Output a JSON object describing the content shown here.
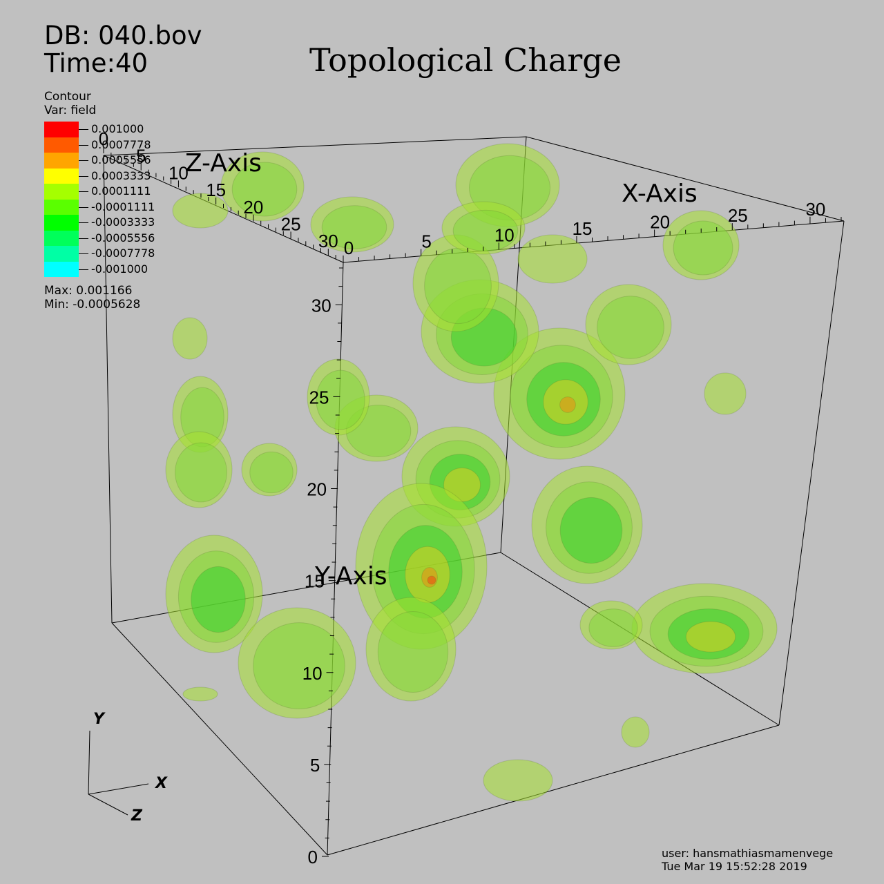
{
  "header": {
    "db": "DB: 040.bov",
    "time": "Time:40"
  },
  "title": "Topological Charge",
  "legend": {
    "heading": "Contour",
    "var": "Var: field",
    "entries": [
      {
        "label": "0.001000",
        "color": "#ff0000"
      },
      {
        "label": "0.0007778",
        "color": "#ff5a00"
      },
      {
        "label": "0.0005556",
        "color": "#ffa500"
      },
      {
        "label": "0.0003333",
        "color": "#ffff00"
      },
      {
        "label": "0.0001111",
        "color": "#a5ff00"
      },
      {
        "label": "-0.0001111",
        "color": "#5aff00"
      },
      {
        "label": "-0.0003333",
        "color": "#00ff00"
      },
      {
        "label": "-0.0005556",
        "color": "#00ff5a"
      },
      {
        "label": "-0.0007778",
        "color": "#00ffa5"
      },
      {
        "label": "-0.001000",
        "color": "#00ffff"
      }
    ],
    "max": "Max:  0.001166",
    "min": "Min: -0.0005628"
  },
  "chart_data": {
    "type": "other",
    "description_type": "3D isosurface contour plot",
    "title": "Topological Charge",
    "axes": [
      {
        "label": "X-Axis",
        "ticks": [
          "0",
          "5",
          "10",
          "15",
          "20",
          "25",
          "30"
        ],
        "range": [
          0,
          32
        ]
      },
      {
        "label": "Y-Axis",
        "ticks": [
          "0",
          "5",
          "10",
          "15",
          "20",
          "25",
          "30"
        ],
        "range": [
          0,
          32
        ]
      },
      {
        "label": "Z-Axis",
        "ticks": [
          "0",
          "5",
          "10",
          "15",
          "20",
          "25",
          "30"
        ],
        "range": [
          0,
          32
        ]
      }
    ],
    "triad": [
      "Y",
      "X",
      "Z"
    ],
    "contour_levels": [
      0.001,
      0.0007778,
      0.0005556,
      0.0003333,
      0.0001111,
      -0.0001111,
      -0.0003333,
      -0.0005556,
      -0.0007778,
      -0.001
    ],
    "surface_colors": [
      "#a5e030",
      "#7fd838",
      "#2ed12a",
      "#e8d020",
      "#f08a10",
      "#f04010"
    ]
  },
  "footer": {
    "user": "user: hansmathiasmamenvege",
    "date": "Tue Mar 19 15:52:28 2019"
  }
}
